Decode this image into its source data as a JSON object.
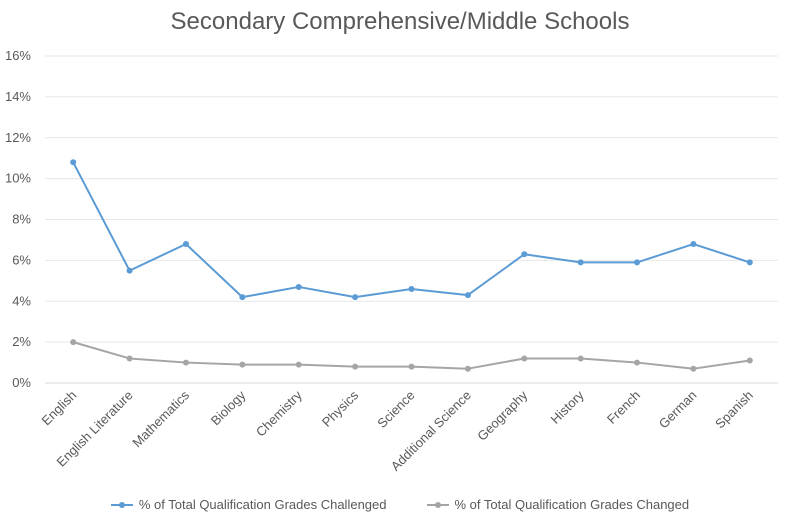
{
  "chart_data": {
    "type": "line",
    "title": "Secondary Comprehensive/Middle Schools",
    "xlabel": "",
    "ylabel": "",
    "categories": [
      "English",
      "English Literature",
      "Mathematics",
      "Biology",
      "Chemistry",
      "Physics",
      "Science",
      "Additional Science",
      "Geography",
      "History",
      "French",
      "German",
      "Spanish"
    ],
    "series": [
      {
        "name": "% of Total Qualification Grades Challenged",
        "color": "#5b9bd5",
        "values": [
          10.8,
          5.5,
          6.8,
          4.2,
          4.7,
          4.2,
          4.6,
          4.3,
          6.3,
          5.9,
          5.9,
          6.8,
          5.9
        ]
      },
      {
        "name": "% of Total Qualification Grades Changed",
        "color": "#a5a5a5",
        "values": [
          2.0,
          1.2,
          1.0,
          0.9,
          0.9,
          0.8,
          0.8,
          0.7,
          1.2,
          1.2,
          1.0,
          0.7,
          1.1
        ]
      }
    ],
    "ylim": [
      0,
      16
    ],
    "yticks": [
      "0%",
      "2%",
      "4%",
      "6%",
      "8%",
      "10%",
      "12%",
      "14%",
      "16%"
    ],
    "grid": true,
    "legend_position": "bottom"
  }
}
